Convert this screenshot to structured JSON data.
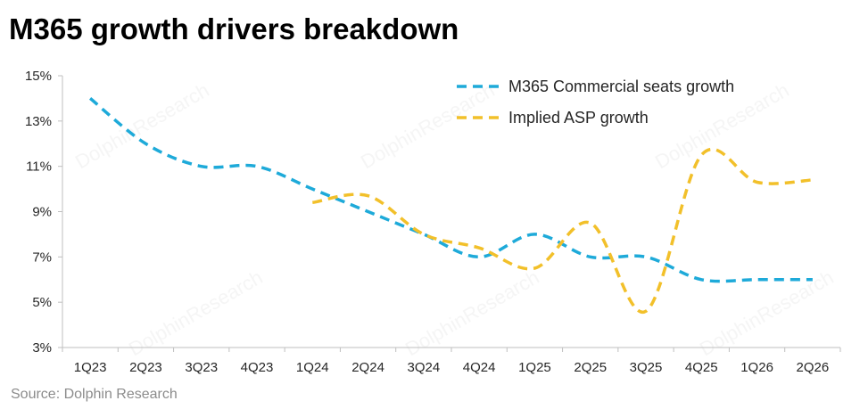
{
  "title": "M365 growth drivers breakdown",
  "source": "Source: Dolphin Research",
  "colors": {
    "seats": "#1EAAD9",
    "asp": "#F2C02A",
    "axis": "#BFBFBF",
    "text": "#262626"
  },
  "chart_data": {
    "type": "line",
    "categories": [
      "1Q23",
      "2Q23",
      "3Q23",
      "4Q23",
      "1Q24",
      "2Q24",
      "3Q24",
      "4Q24",
      "1Q25",
      "2Q25",
      "3Q25",
      "4Q25",
      "1Q26",
      "2Q26"
    ],
    "y_ticks": [
      "3%",
      "5%",
      "7%",
      "9%",
      "11%",
      "13%",
      "15%"
    ],
    "ylim": [
      3,
      15
    ],
    "grid": false,
    "legend_position": "top-right",
    "line_style": "dashed",
    "series": [
      {
        "name": "M365 Commercial seats growth",
        "color": "#1EAAD9",
        "values": [
          14.0,
          12.0,
          11.0,
          11.0,
          10.0,
          9.0,
          8.0,
          7.0,
          8.0,
          7.0,
          7.0,
          6.0,
          6.0,
          6.0
        ]
      },
      {
        "name": "Implied ASP growth",
        "color": "#F2C02A",
        "values": [
          null,
          null,
          null,
          null,
          9.4,
          9.7,
          8.0,
          7.4,
          6.5,
          8.5,
          4.6,
          11.5,
          10.3,
          10.4
        ]
      }
    ]
  }
}
